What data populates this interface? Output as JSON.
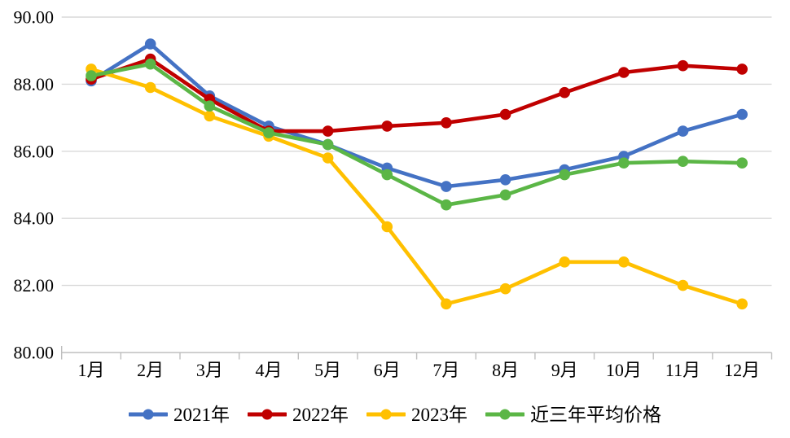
{
  "chart_data": {
    "type": "line",
    "title": "",
    "categories": [
      "1月",
      "2月",
      "3月",
      "4月",
      "5月",
      "6月",
      "7月",
      "8月",
      "9月",
      "10月",
      "11月",
      "12月"
    ],
    "series": [
      {
        "name": "2021年",
        "color": "#4472C4",
        "values": [
          88.1,
          89.2,
          87.65,
          86.75,
          86.2,
          85.5,
          84.95,
          85.15,
          85.45,
          85.85,
          86.6,
          87.1
        ]
      },
      {
        "name": "2022年",
        "color": "#C00000",
        "values": [
          88.15,
          88.75,
          87.55,
          86.6,
          86.6,
          86.75,
          86.85,
          87.1,
          87.75,
          88.35,
          88.55,
          88.45
        ]
      },
      {
        "name": "2023年",
        "color": "#FFC000",
        "values": [
          88.45,
          87.9,
          87.05,
          86.45,
          85.8,
          83.75,
          81.45,
          81.9,
          82.7,
          82.7,
          82.0,
          81.45
        ]
      },
      {
        "name": "近三年平均价格",
        "color": "#5BB646",
        "values": [
          88.25,
          88.6,
          87.35,
          86.55,
          86.2,
          85.3,
          84.4,
          84.7,
          85.3,
          85.65,
          85.7,
          85.65
        ]
      }
    ],
    "ylim": [
      80,
      90
    ],
    "ytick_step": 2,
    "ytick_labels": [
      "80.00",
      "82.00",
      "84.00",
      "86.00",
      "88.00",
      "90.00"
    ],
    "grid": "horizontal",
    "legend_position": "bottom"
  },
  "colors": {
    "grid": "#D9D9D9",
    "axis": "#BFBFBF",
    "text": "#000000",
    "background": "#FFFFFF"
  }
}
